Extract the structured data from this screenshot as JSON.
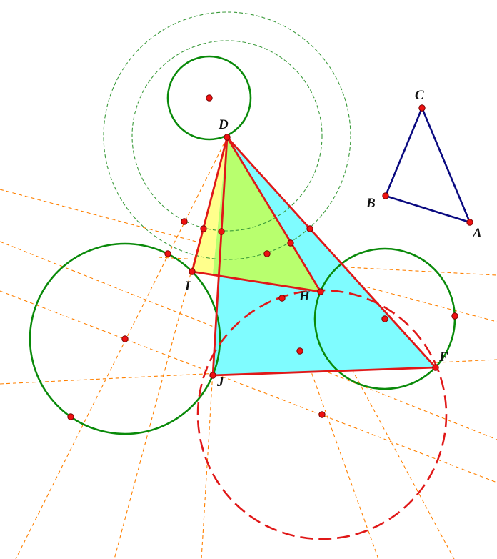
{
  "colors": {
    "background": "#ffffff",
    "construction_line": "#ff8000",
    "circle_green": "#0a8a0a",
    "circle_green_dashed": "#3a9a3a",
    "triangle_red": "#e01818",
    "triangle_blue": "#0a0a80",
    "fill_cyan": "#7ffcff",
    "fill_yellow": "#ffff8c",
    "fill_lime": "#b8ff6e",
    "point_fill": "#ee1111",
    "point_stroke": "#770000"
  },
  "labels": {
    "A": "A",
    "B": "B",
    "C": "C",
    "D": "D",
    "F": "F",
    "H": "H",
    "I": "I",
    "J": "J"
  }
}
